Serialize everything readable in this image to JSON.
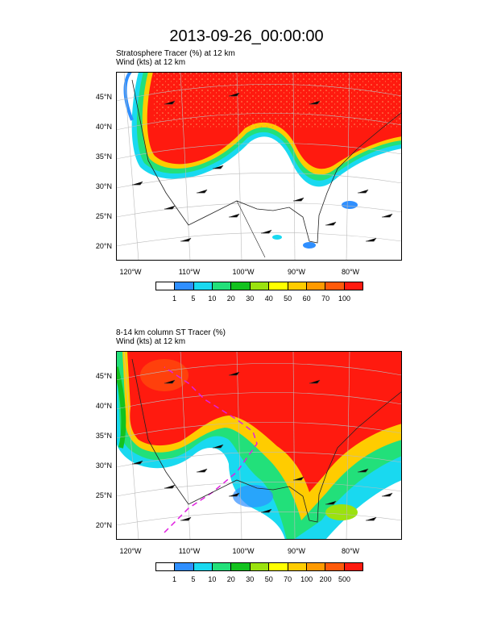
{
  "title": "2013-09-26_00:00:00",
  "panels": [
    {
      "subtitle_line1": "Stratosphere Tracer   (%)     at   12 km",
      "subtitle_line2": "Wind    (kts)      at   12 km",
      "lat_labels": [
        "45°N",
        "40°N",
        "35°N",
        "30°N",
        "25°N",
        "20°N"
      ],
      "lon_labels": [
        "120°W",
        "110°W",
        "100°W",
        "90°W",
        "80°W"
      ],
      "colorbar_labels": [
        "1",
        "5",
        "10",
        "20",
        "30",
        "40",
        "50",
        "60",
        "70",
        "100"
      ],
      "colorbar_colors": [
        "#ffffff",
        "#2f8fff",
        "#19d9f0",
        "#22e07a",
        "#13c21e",
        "#9be20f",
        "#ffff00",
        "#ffcc00",
        "#ff9a00",
        "#ff5a0a",
        "#ff1a0f"
      ]
    },
    {
      "subtitle_line1": "8-14 km column ST Tracer   (%)",
      "subtitle_line2": "Wind    (kts)      at   12 km",
      "lat_labels": [
        "45°N",
        "40°N",
        "35°N",
        "30°N",
        "25°N",
        "20°N"
      ],
      "lon_labels": [
        "120°W",
        "110°W",
        "100°W",
        "90°W",
        "80°W"
      ],
      "colorbar_labels": [
        "1",
        "5",
        "10",
        "20",
        "30",
        "50",
        "70",
        "100",
        "200",
        "500"
      ],
      "colorbar_colors": [
        "#ffffff",
        "#2f8fff",
        "#19d9f0",
        "#22e07a",
        "#13c21e",
        "#9be20f",
        "#ffff00",
        "#ffcc00",
        "#ff9a00",
        "#ff5a0a",
        "#ff1a0f"
      ]
    }
  ]
}
